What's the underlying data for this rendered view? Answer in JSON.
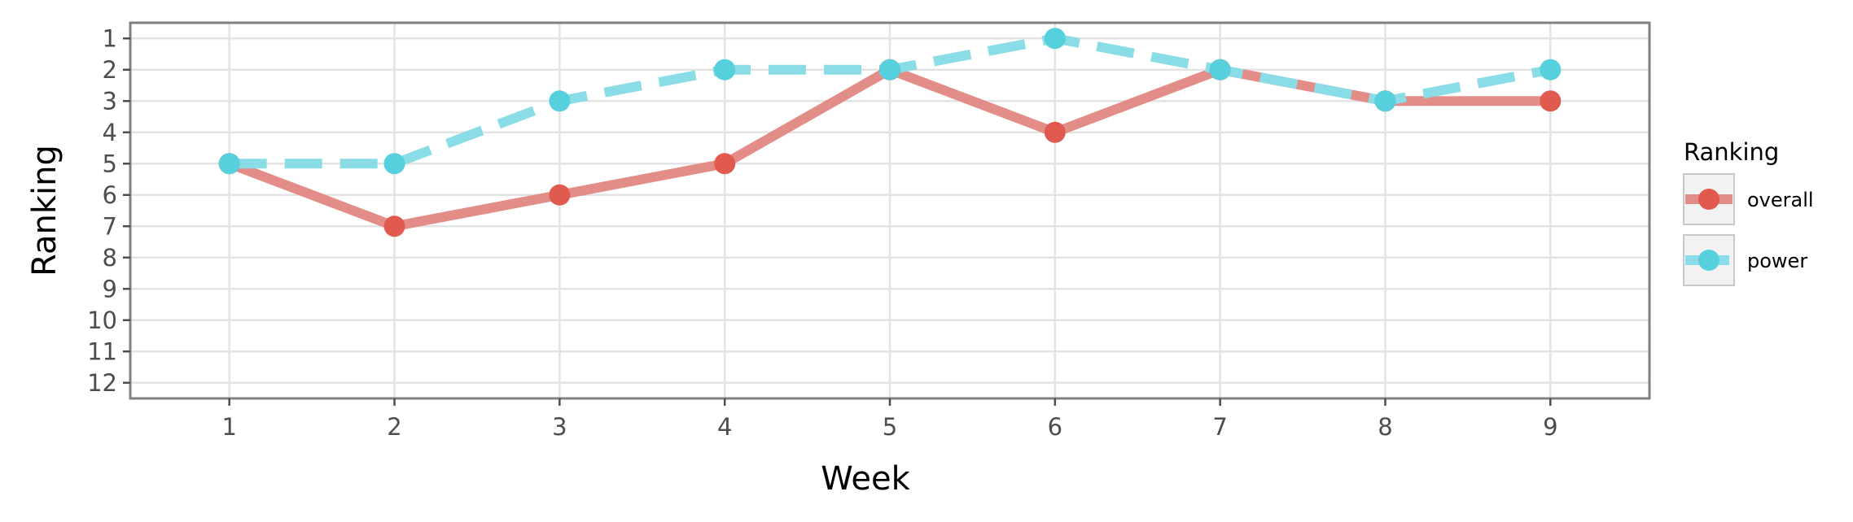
{
  "chart_data": {
    "type": "line",
    "title": "",
    "xlabel": "Week",
    "ylabel": "Ranking",
    "x": [
      1,
      2,
      3,
      4,
      5,
      6,
      7,
      8,
      9
    ],
    "x_ticks": [
      "1",
      "2",
      "3",
      "4",
      "5",
      "6",
      "7",
      "8",
      "9"
    ],
    "y_ticks": [
      "1",
      "2",
      "3",
      "4",
      "5",
      "6",
      "7",
      "8",
      "9",
      "10",
      "11",
      "12"
    ],
    "xlim": [
      0.4,
      9.6
    ],
    "ylim": [
      12.5,
      0.5
    ],
    "y_reversed": true,
    "grid": true,
    "legend_title": "Ranking",
    "legend_position": "right",
    "series": [
      {
        "name": "overall",
        "color": "#e15a4f",
        "line_color": "#e38d88",
        "dash": "solid",
        "values": [
          5,
          7,
          6,
          5,
          2,
          4,
          2,
          3,
          3
        ]
      },
      {
        "name": "power",
        "color": "#56d0dc",
        "line_color": "#8adde6",
        "dash": "dashed",
        "values": [
          5,
          5,
          3,
          2,
          2,
          1,
          2,
          3,
          2
        ]
      }
    ]
  }
}
